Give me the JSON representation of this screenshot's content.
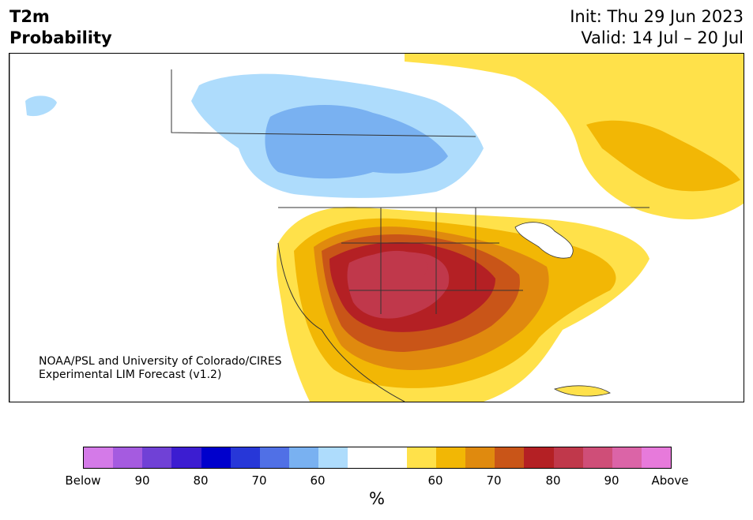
{
  "header": {
    "title_line1": "T2m",
    "title_line2": "Probability",
    "init": "Init: Thu 29 Jun 2023",
    "valid": "Valid: 14 Jul – 20 Jul"
  },
  "credit": {
    "line1": "NOAA/PSL and University of Colorado/CIRES",
    "line2": "Experimental LIM Forecast (v1.2)"
  },
  "colorbar": {
    "colors": [
      "#d47ae8",
      "#a55be0",
      "#7041d6",
      "#3c1dd1",
      "#0000cc",
      "#2737d8",
      "#5070e6",
      "#79b1f1",
      "#aedcfc",
      "#ffffff",
      "#ffffff",
      "#ffe14a",
      "#f2b705",
      "#e08a0e",
      "#c95518",
      "#b42024",
      "#c0384b",
      "#cf4e78",
      "#db64a7",
      "#e77adb"
    ],
    "tick_labels": [
      "Below",
      "90",
      "80",
      "70",
      "60",
      "60",
      "70",
      "80",
      "90",
      "Above"
    ],
    "unit": "%"
  },
  "map": {
    "colors": {
      "ocean": "#ffffff",
      "border": "#333333",
      "light_blue": "#aedcfc",
      "mid_blue": "#79b1f1",
      "yellow": "#ffe14a",
      "gold": "#f2b705",
      "orange": "#e08a0e",
      "dark_orange": "#c95518",
      "red": "#b42024",
      "dark_red": "#c0384b"
    }
  }
}
